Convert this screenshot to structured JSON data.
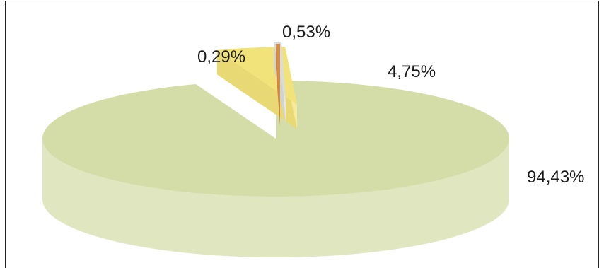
{
  "chart_data": {
    "type": "pie",
    "style": "3d-exploded",
    "slices": [
      {
        "value": 94.43,
        "label": "94,43%",
        "color": "#d4dca7"
      },
      {
        "value": 4.75,
        "label": "4,75%",
        "color": "#f2e27a"
      },
      {
        "value": 0.53,
        "label": "0,53%",
        "color": "#d9ddd8"
      },
      {
        "value": 0.29,
        "label": "0,29%",
        "color": "#d98c45"
      }
    ],
    "title": "",
    "legend": "none"
  }
}
